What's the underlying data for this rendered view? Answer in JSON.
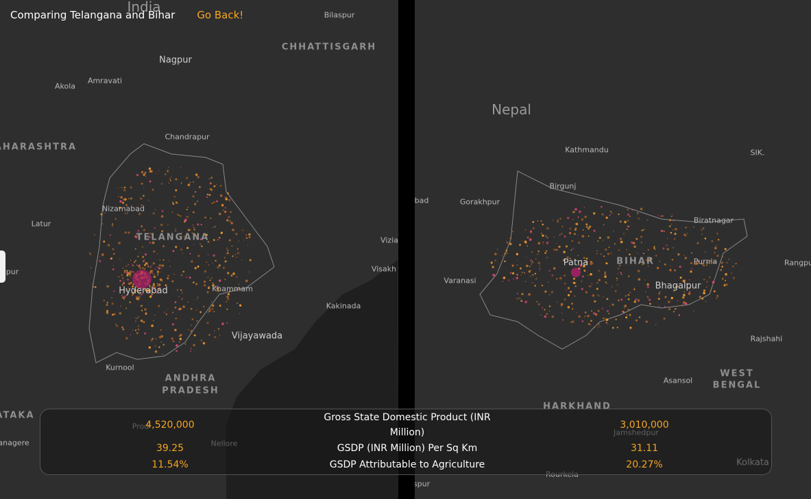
{
  "header": {
    "title": "Comparing Telangana and Bihar",
    "back_link": "Go Back!"
  },
  "maps": [
    {
      "labels": [
        "India",
        "Bilaspur",
        "CHHATTISGARH",
        "Nagpur",
        "Amravati",
        "Akola",
        "Chandrapur",
        "AHARASHTRA",
        "Nizamabad",
        "Latur",
        "TELANGANA",
        "Vizia",
        "Visakh",
        "pur",
        "Hyderabad",
        "Khammam",
        "Kakinada",
        "Vijayawada",
        "Kurnool",
        "ANDHRA",
        "PRADESH",
        "ATAKA",
        "Prod",
        "anagere",
        "Nellore"
      ]
    },
    {
      "labels": [
        "Nepal",
        "Kathmandu",
        "SIK.",
        "Birgunj",
        "bad",
        "Gorakhpur",
        "Biratnagar",
        "Patna",
        "BIHAR",
        "Purnia",
        "Rangpu",
        "Varanasi",
        "Bhagalpur",
        "Rajshahi",
        "Asansol",
        "WEST",
        "BENGAL",
        "HARKHAND",
        "Jamshedpur",
        "Kolkata",
        "Rourkela",
        "spur"
      ]
    }
  ],
  "comparison": {
    "rows": [
      {
        "left": "4,520,000",
        "metric": "Gross State Domestic Product (INR Million)",
        "right": "3,010,000"
      },
      {
        "left": "39.25",
        "metric": "GSDP (INR Million) Per Sq Km",
        "right": "31.11"
      },
      {
        "left": "11.54%",
        "metric": "GSDP Attributable to Agriculture",
        "right": "20.27%"
      }
    ]
  }
}
